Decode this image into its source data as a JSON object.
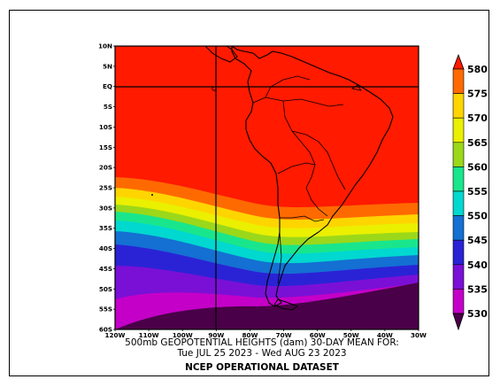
{
  "figure": {
    "title_line1": "500mb GEOPOTENTIAL HEIGHTS (dam)    30-DAY MEAN FOR:",
    "title_line2": "Tue JUL 25 2023 - Wed AUG 23 2023",
    "source": "NCEP OPERATIONAL DATASET"
  },
  "map": {
    "lat_labels": [
      "10N",
      "5N",
      "EQ",
      "5S",
      "10S",
      "15S",
      "20S",
      "25S",
      "30S",
      "35S",
      "40S",
      "45S",
      "50S",
      "55S",
      "60S"
    ],
    "lon_labels": [
      "120W",
      "110W",
      "100W",
      "90W",
      "80W",
      "70W",
      "60W",
      "50W",
      "40W",
      "30W"
    ],
    "reference_lines": {
      "equator": "EQ",
      "meridian": "90W"
    }
  },
  "colorbar": {
    "levels": [
      "580",
      "575",
      "570",
      "565",
      "560",
      "555",
      "550",
      "545",
      "540",
      "535",
      "530"
    ],
    "bands_top_to_bottom": [
      {
        "level": "above 580",
        "color": "#ff1a00"
      },
      {
        "level": "575-580",
        "color": "#ff6a00"
      },
      {
        "level": "570-575",
        "color": "#ffd500"
      },
      {
        "level": "565-570",
        "color": "#eaf000"
      },
      {
        "level": "560-565",
        "color": "#9bd81a"
      },
      {
        "level": "555-560",
        "color": "#19e68c"
      },
      {
        "level": "550-555",
        "color": "#00d8d0"
      },
      {
        "level": "545-550",
        "color": "#1470d2"
      },
      {
        "level": "540-545",
        "color": "#2a23d6"
      },
      {
        "level": "535-540",
        "color": "#7a10d6"
      },
      {
        "level": "530-535",
        "color": "#c400c8"
      },
      {
        "level": "below 530",
        "color": "#4a0048"
      }
    ]
  }
}
